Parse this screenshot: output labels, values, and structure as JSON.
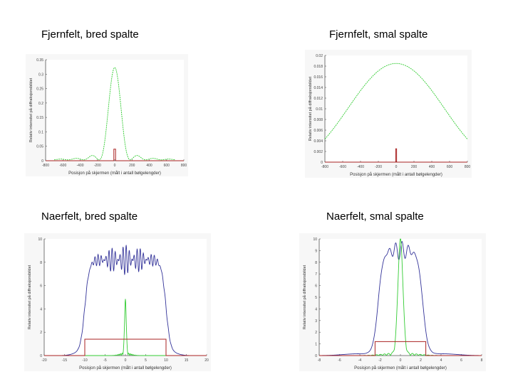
{
  "titles": {
    "tl": "Fjernfelt, bred spalte",
    "tr": "Fjernfelt, smal spalte",
    "bl": "Naerfelt, bred spalte",
    "br": "Naerfelt, smal spalte"
  },
  "colors": {
    "green": "#33cc33",
    "blue": "#333399",
    "red": "#aa2222",
    "axis": "#555555"
  },
  "chart_data": [
    {
      "id": "tl",
      "type": "line",
      "xlabel": "Posisjon på skjermen (målt i antall bølgelengder)",
      "ylabel": "Relativ intensitet på diffraksjonsbildet",
      "xlim": [
        -800,
        800
      ],
      "ylim": [
        0,
        0.35
      ],
      "xticks": [
        -800,
        -600,
        -400,
        -200,
        0,
        200,
        400,
        600,
        800
      ],
      "xtick_labels": [
        "-800",
        "-600",
        "-400",
        "-200",
        "0",
        "200",
        "400",
        "600",
        "800"
      ],
      "yticks": [
        0,
        0.05,
        0.1,
        0.15,
        0.2,
        0.25,
        0.3,
        0.35
      ],
      "ytick_labels": [
        "0",
        "0.05",
        "0.1",
        "0.15",
        "0.2",
        "0.25",
        "0.3",
        "0.35"
      ],
      "series": [
        {
          "color": "green",
          "kind": "sinc2",
          "center": 0,
          "peak": 0.32,
          "first_zero": 180,
          "floor": 0.003,
          "x_range": [
            -700,
            700
          ]
        },
        {
          "color": "red",
          "kind": "rect",
          "x0": -10,
          "x1": 10,
          "h": 0.04
        }
      ]
    },
    {
      "id": "tr",
      "type": "line",
      "xlabel": "Posisjon på skjermen (målt i antall bølgelengder)",
      "ylabel": "Relativ intensitet på diffraksjonsbildet",
      "xlim": [
        -800,
        800
      ],
      "ylim": [
        0,
        0.02
      ],
      "xticks": [
        -800,
        -600,
        -400,
        -200,
        0,
        200,
        400,
        600,
        800
      ],
      "xtick_labels": [
        "-800",
        "-600",
        "-400",
        "-200",
        "0",
        "200",
        "400",
        "600",
        "800"
      ],
      "yticks": [
        0,
        0.002,
        0.004,
        0.006,
        0.008,
        0.01,
        0.012,
        0.014,
        0.016,
        0.018,
        0.02
      ],
      "ytick_labels": [
        "0",
        "0.002",
        "0.004",
        "0.006",
        "0.008",
        "0.01",
        "0.012",
        "0.014",
        "0.016",
        "0.018",
        "0.02"
      ],
      "series": [
        {
          "color": "green",
          "kind": "sinc2",
          "center": 0,
          "peak": 0.0185,
          "first_zero": 1300,
          "floor": 0,
          "x_range": [
            -800,
            800
          ]
        },
        {
          "color": "red",
          "kind": "rect",
          "x0": -5,
          "x1": 5,
          "h": 0.0025
        }
      ]
    },
    {
      "id": "bl",
      "type": "line",
      "xlabel": "Posisjon på skjermen (målt i antall bølgelengder)",
      "ylabel": "Relativ intensitet på diffraksjonsbildet",
      "xlim": [
        -20,
        20
      ],
      "ylim": [
        0,
        10
      ],
      "xticks": [
        -20,
        -15,
        -10,
        -5,
        0,
        5,
        10,
        15,
        20
      ],
      "xtick_labels": [
        "-20",
        "-15",
        "-10",
        "-5",
        "0",
        "5",
        "10",
        "15",
        "20"
      ],
      "yticks": [
        0,
        2,
        4,
        6,
        8,
        10
      ],
      "ytick_labels": [
        "0",
        "2",
        "4",
        "6",
        "8",
        "10"
      ],
      "series": [
        {
          "color": "blue",
          "kind": "fresnel",
          "half_width": 10,
          "level": 8.2,
          "amp": 1.3,
          "freq": 2.6,
          "edge": 1.6,
          "x_range": [
            -20,
            20
          ]
        },
        {
          "color": "green",
          "kind": "spike",
          "center": 0,
          "peak": 4.6,
          "width": 0.3,
          "x_range": [
            -20,
            20
          ]
        },
        {
          "color": "red",
          "kind": "rect",
          "x0": -10,
          "x1": 10,
          "h": 1.4
        }
      ]
    },
    {
      "id": "br",
      "type": "line",
      "xlabel": "Posisjon på skjermen (målt i antall bølgelengder)",
      "ylabel": "Relativ intensitet på diffraksjonsbildet",
      "xlim": [
        -8,
        8
      ],
      "ylim": [
        0,
        10
      ],
      "xticks": [
        -8,
        -6,
        -4,
        -2,
        0,
        2,
        4,
        6,
        8
      ],
      "xtick_labels": [
        "-8",
        "-6",
        "-4",
        "-2",
        "0",
        "2",
        "4",
        "6",
        "8"
      ],
      "yticks": [
        0,
        1,
        2,
        3,
        4,
        5,
        6,
        7,
        8,
        9,
        10
      ],
      "ytick_labels": [
        "0",
        "1",
        "2",
        "3",
        "4",
        "5",
        "6",
        "7",
        "8",
        "9",
        "10"
      ],
      "series": [
        {
          "color": "blue",
          "kind": "fresnel",
          "half_width": 2.2,
          "level": 9.0,
          "amp": 0.8,
          "freq": 3.2,
          "edge": 0.7,
          "x_range": [
            -8,
            8
          ]
        },
        {
          "color": "green",
          "kind": "spike",
          "center": 0,
          "peak": 9.8,
          "width": 0.35,
          "x_range": [
            -8,
            8
          ]
        },
        {
          "color": "red",
          "kind": "rect",
          "x0": -2.5,
          "x1": 2.5,
          "h": 1.2
        }
      ]
    }
  ]
}
